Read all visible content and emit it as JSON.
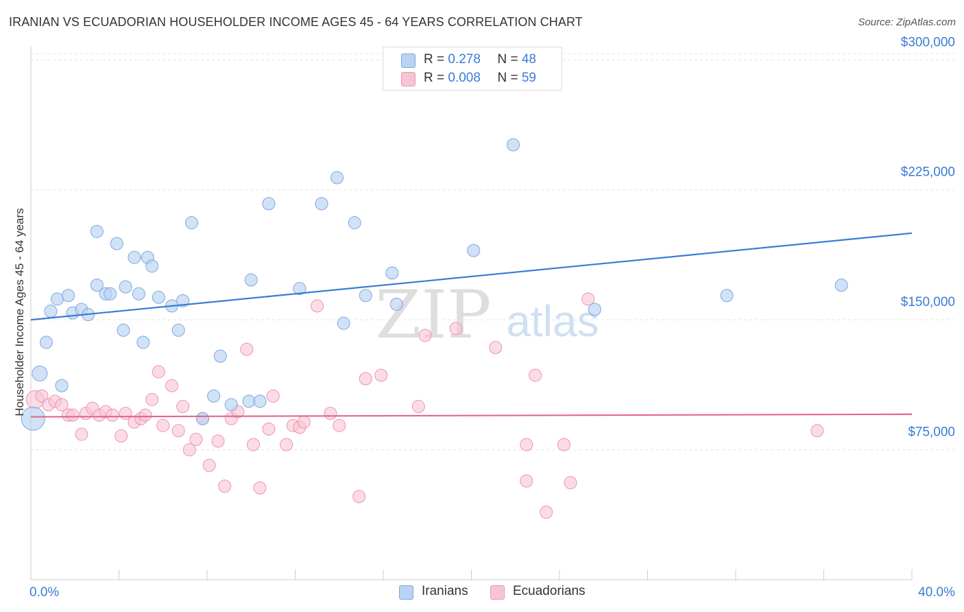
{
  "title": "IRANIAN VS ECUADORIAN HOUSEHOLDER INCOME AGES 45 - 64 YEARS CORRELATION CHART",
  "source": "Source: ZipAtlas.com",
  "watermark": {
    "zip": "ZIP",
    "atlas": "atlas"
  },
  "legend": {
    "iranians": {
      "r_label": "R = ",
      "r_value": "0.278",
      "n_label": "N = ",
      "n_value": "48"
    },
    "ecuadorians": {
      "r_label": "R = ",
      "r_value": "0.008",
      "n_label": "N = ",
      "n_value": "59"
    }
  },
  "colors": {
    "blue_fill": "#b9d3f3",
    "blue_stroke": "#7ea6dc",
    "blue_line": "#3a7bd5",
    "pink_fill": "#f8c4d3",
    "pink_stroke": "#ec93ad",
    "pink_line": "#e2678e",
    "tick_label": "#3a7bd5",
    "grid": "#e3e3e3"
  },
  "chart_data": {
    "type": "scatter",
    "title": "IRANIAN VS ECUADORIAN HOUSEHOLDER INCOME AGES 45 - 64 YEARS CORRELATION CHART",
    "xlabel": "",
    "ylabel": "Householder Income Ages 45 - 64 years",
    "xlim": [
      0,
      40
    ],
    "ylim": [
      0,
      310000
    ],
    "x_tick_labels": [
      "0.0%",
      "40.0%"
    ],
    "y_ticks": [
      75000,
      150000,
      225000,
      300000
    ],
    "y_tick_labels": [
      "$75,000",
      "$150,000",
      "$225,000",
      "$300,000"
    ],
    "grid": true,
    "legend_position": "bottom",
    "series": [
      {
        "name": "Iranians",
        "color": "#b9d3f3",
        "trend": {
          "x": [
            0,
            40
          ],
          "y": [
            150000,
            200000
          ]
        },
        "points": [
          [
            0.1,
            93000
          ],
          [
            0.4,
            119000
          ],
          [
            0.7,
            137000
          ],
          [
            0.9,
            155000
          ],
          [
            1.2,
            162000
          ],
          [
            1.4,
            112000
          ],
          [
            1.7,
            164000
          ],
          [
            1.9,
            154000
          ],
          [
            2.3,
            156000
          ],
          [
            2.6,
            153000
          ],
          [
            3.0,
            170000
          ],
          [
            3.0,
            201000
          ],
          [
            3.4,
            165000
          ],
          [
            3.6,
            165000
          ],
          [
            3.9,
            194000
          ],
          [
            4.2,
            144000
          ],
          [
            4.3,
            169000
          ],
          [
            4.7,
            186000
          ],
          [
            4.9,
            165000
          ],
          [
            5.1,
            137000
          ],
          [
            5.3,
            186000
          ],
          [
            5.5,
            181000
          ],
          [
            5.8,
            163000
          ],
          [
            6.4,
            158000
          ],
          [
            6.7,
            144000
          ],
          [
            6.9,
            161000
          ],
          [
            7.3,
            206000
          ],
          [
            7.8,
            93000
          ],
          [
            8.3,
            106000
          ],
          [
            8.6,
            129000
          ],
          [
            9.1,
            101000
          ],
          [
            9.9,
            103000
          ],
          [
            10.0,
            173000
          ],
          [
            10.4,
            103000
          ],
          [
            10.8,
            217000
          ],
          [
            12.2,
            168000
          ],
          [
            13.2,
            217000
          ],
          [
            13.9,
            232000
          ],
          [
            14.2,
            148000
          ],
          [
            14.7,
            206000
          ],
          [
            15.2,
            164000
          ],
          [
            16.4,
            177000
          ],
          [
            16.6,
            159000
          ],
          [
            20.1,
            190000
          ],
          [
            21.9,
            251000
          ],
          [
            25.6,
            156000
          ],
          [
            31.6,
            164000
          ],
          [
            36.8,
            170000
          ]
        ]
      },
      {
        "name": "Ecuadorians",
        "color": "#f8c4d3",
        "trend": {
          "x": [
            0,
            40
          ],
          "y": [
            94000,
            95500
          ]
        },
        "points": [
          [
            0.2,
            104000
          ],
          [
            0.5,
            106000
          ],
          [
            0.8,
            101000
          ],
          [
            1.1,
            103000
          ],
          [
            1.4,
            101000
          ],
          [
            1.7,
            95000
          ],
          [
            1.9,
            95000
          ],
          [
            2.3,
            84000
          ],
          [
            2.5,
            96000
          ],
          [
            2.8,
            99000
          ],
          [
            3.1,
            95000
          ],
          [
            3.4,
            97000
          ],
          [
            3.7,
            95000
          ],
          [
            4.1,
            83000
          ],
          [
            4.3,
            96000
          ],
          [
            4.7,
            91000
          ],
          [
            5.0,
            93000
          ],
          [
            5.2,
            95000
          ],
          [
            5.5,
            104000
          ],
          [
            5.8,
            120000
          ],
          [
            6.0,
            89000
          ],
          [
            6.4,
            112000
          ],
          [
            6.7,
            86000
          ],
          [
            6.9,
            100000
          ],
          [
            7.2,
            75000
          ],
          [
            7.5,
            81000
          ],
          [
            7.8,
            93000
          ],
          [
            8.1,
            66000
          ],
          [
            8.5,
            80000
          ],
          [
            8.8,
            54000
          ],
          [
            9.1,
            93000
          ],
          [
            9.4,
            97000
          ],
          [
            9.8,
            133000
          ],
          [
            10.1,
            78000
          ],
          [
            10.4,
            53000
          ],
          [
            10.8,
            87000
          ],
          [
            11.0,
            106000
          ],
          [
            11.6,
            78000
          ],
          [
            11.9,
            89000
          ],
          [
            12.2,
            88000
          ],
          [
            12.4,
            91000
          ],
          [
            13.0,
            158000
          ],
          [
            13.6,
            96000
          ],
          [
            14.0,
            89000
          ],
          [
            14.9,
            48000
          ],
          [
            15.2,
            116000
          ],
          [
            15.9,
            118000
          ],
          [
            17.6,
            100000
          ],
          [
            17.9,
            141000
          ],
          [
            19.3,
            145000
          ],
          [
            21.1,
            134000
          ],
          [
            22.5,
            78000
          ],
          [
            22.5,
            57000
          ],
          [
            22.9,
            118000
          ],
          [
            23.4,
            39000
          ],
          [
            24.2,
            78000
          ],
          [
            24.5,
            56000
          ],
          [
            25.3,
            162000
          ],
          [
            35.7,
            86000
          ]
        ]
      }
    ]
  }
}
